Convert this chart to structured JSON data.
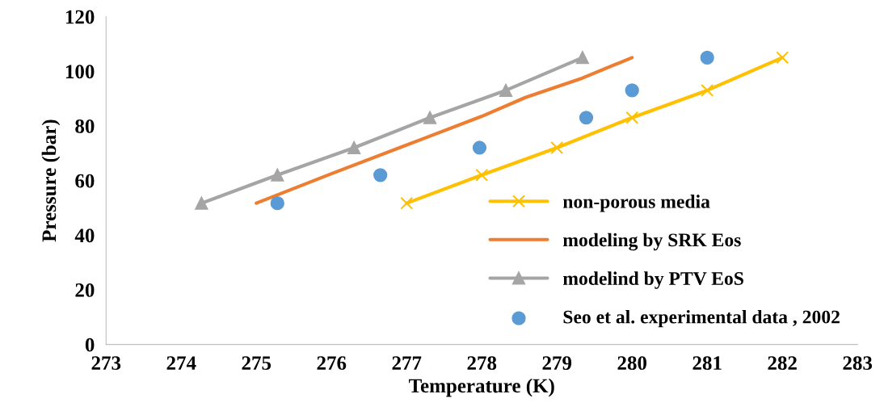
{
  "chart_data": {
    "type": "line",
    "xlabel": "Temperature (K)",
    "ylabel": "Pressure (bar)",
    "xlim": [
      273,
      283
    ],
    "xticks": [
      273,
      274,
      275,
      276,
      277,
      278,
      279,
      280,
      281,
      282,
      283
    ],
    "ylim": [
      0,
      120
    ],
    "yticks": [
      0,
      20,
      40,
      60,
      80,
      100,
      120
    ],
    "grid": false,
    "legend": "bottom right",
    "series": [
      {
        "name": "non-porous media",
        "color": "#ffc000",
        "marker": "cross",
        "x": [
          277.0,
          278.0,
          279.0,
          280.0,
          281.0,
          282.0
        ],
        "values": [
          51.7,
          62,
          72,
          83,
          93,
          105
        ]
      },
      {
        "name": "modeling by SRK Eos",
        "color": "#ed7d31",
        "marker": "none",
        "x": [
          275.0,
          276.0,
          277.19,
          278.0,
          278.58,
          279.34,
          280.0
        ],
        "values": [
          51.7,
          62.5,
          75,
          83.5,
          90.4,
          97.5,
          105
        ]
      },
      {
        "name": "modelind by PTV EoS",
        "color": "#a5a5a5",
        "marker": "triangle",
        "x": [
          274.27,
          275.28,
          276.3,
          277.31,
          278.32,
          279.34
        ],
        "values": [
          51.7,
          62,
          72,
          83,
          93,
          105
        ]
      },
      {
        "name": "Seo et al. experimental data , 2002",
        "type": "scatter",
        "color": "#5b9bd5",
        "marker": "circle",
        "x": [
          275.28,
          276.65,
          277.97,
          279.39,
          280.0,
          281.0
        ],
        "values": [
          51.7,
          62,
          72,
          83,
          93,
          105
        ]
      }
    ]
  }
}
